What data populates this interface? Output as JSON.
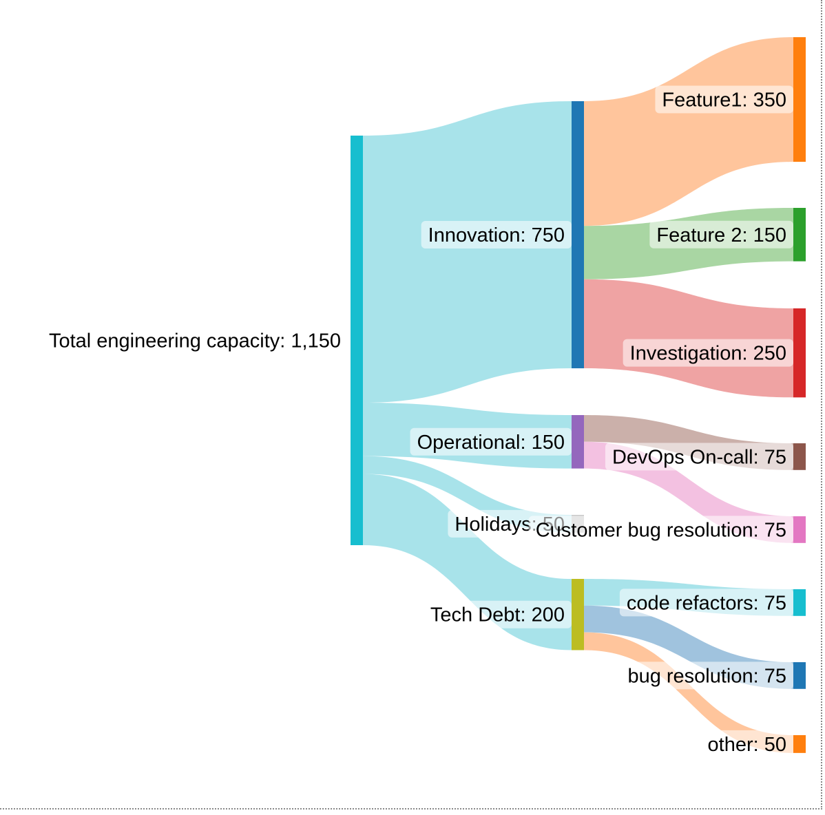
{
  "chart_data": {
    "type": "sankey",
    "nodes": [
      {
        "id": "total",
        "label": "Total engineering capacity: 1,150",
        "value": 1150,
        "color": "#17becf"
      },
      {
        "id": "innovation",
        "label": "Innovation: 750",
        "value": 750,
        "color": "#1f77b4"
      },
      {
        "id": "operational",
        "label": "Operational: 150",
        "value": 150,
        "color": "#9467bd"
      },
      {
        "id": "holidays",
        "label": "Holidays: 50",
        "value": 50,
        "color": "#c7c7c7"
      },
      {
        "id": "techdebt",
        "label": "Tech Debt: 200",
        "value": 200,
        "color": "#bcbd22"
      },
      {
        "id": "feature1",
        "label": "Feature1: 350",
        "value": 350,
        "color": "#ff7f0e"
      },
      {
        "id": "feature2",
        "label": "Feature 2: 150",
        "value": 150,
        "color": "#2ca02c"
      },
      {
        "id": "investigation",
        "label": "Investigation: 250",
        "value": 250,
        "color": "#d62728"
      },
      {
        "id": "devops",
        "label": "DevOps On-call: 75",
        "value": 75,
        "color": "#8c564b"
      },
      {
        "id": "customerbug",
        "label": "Customer bug resolution: 75",
        "value": 75,
        "color": "#e377c2"
      },
      {
        "id": "refactors",
        "label": "code refactors: 75",
        "value": 75,
        "color": "#17becf"
      },
      {
        "id": "bugres",
        "label": "bug resolution: 75",
        "value": 75,
        "color": "#1f77b4"
      },
      {
        "id": "other",
        "label": "other: 50",
        "value": 50,
        "color": "#ff7f0e"
      }
    ],
    "links": [
      {
        "source": "total",
        "target": "innovation",
        "value": 750,
        "color": "#a8e3ea"
      },
      {
        "source": "total",
        "target": "operational",
        "value": 150,
        "color": "#a8e3ea"
      },
      {
        "source": "total",
        "target": "holidays",
        "value": 50,
        "color": "#a8e3ea"
      },
      {
        "source": "total",
        "target": "techdebt",
        "value": 200,
        "color": "#a8e3ea"
      },
      {
        "source": "innovation",
        "target": "feature1",
        "value": 350,
        "color": "#ffc59c"
      },
      {
        "source": "innovation",
        "target": "feature2",
        "value": 150,
        "color": "#a9d6a3"
      },
      {
        "source": "innovation",
        "target": "investigation",
        "value": 250,
        "color": "#efa3a3"
      },
      {
        "source": "operational",
        "target": "devops",
        "value": 75,
        "color": "#cbb0aa"
      },
      {
        "source": "operational",
        "target": "customerbug",
        "value": 75,
        "color": "#f3c1e1"
      },
      {
        "source": "techdebt",
        "target": "refactors",
        "value": 75,
        "color": "#a8e3ea"
      },
      {
        "source": "techdebt",
        "target": "bugres",
        "value": 75,
        "color": "#a0c3de"
      },
      {
        "source": "techdebt",
        "target": "other",
        "value": 50,
        "color": "#ffc59c"
      }
    ]
  }
}
